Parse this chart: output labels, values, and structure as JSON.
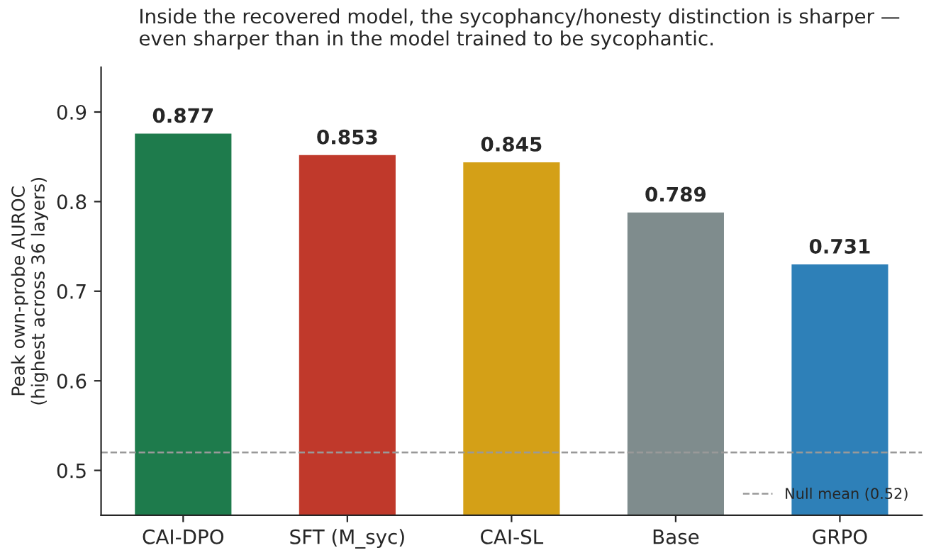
{
  "chart_data": {
    "type": "bar",
    "title": "Inside the recovered model, the sycophancy/honesty distinction is sharper —\neven sharper than in the model trained to be sycophantic.",
    "ylabel": "Peak own-probe AUROC\n(highest across 36 layers)",
    "categories": [
      "CAI-DPO",
      "SFT (M_syc)",
      "CAI-SL",
      "Base",
      "GRPO"
    ],
    "values": [
      0.877,
      0.853,
      0.845,
      0.789,
      0.731
    ],
    "colors": [
      "#1e7b4c",
      "#c0392b",
      "#d4a017",
      "#7f8c8d",
      "#2e80b8"
    ],
    "data_labels": true,
    "ylim": [
      0.45,
      0.95
    ],
    "yticks": [
      0.5,
      0.6,
      0.7,
      0.8,
      0.9
    ],
    "ref_lines": [
      {
        "axis": "y",
        "value": 0.52,
        "label": "Null mean (0.52)",
        "color": "#999999",
        "line_style": "dashed"
      }
    ],
    "legend": "bottom right",
    "grid": false
  }
}
